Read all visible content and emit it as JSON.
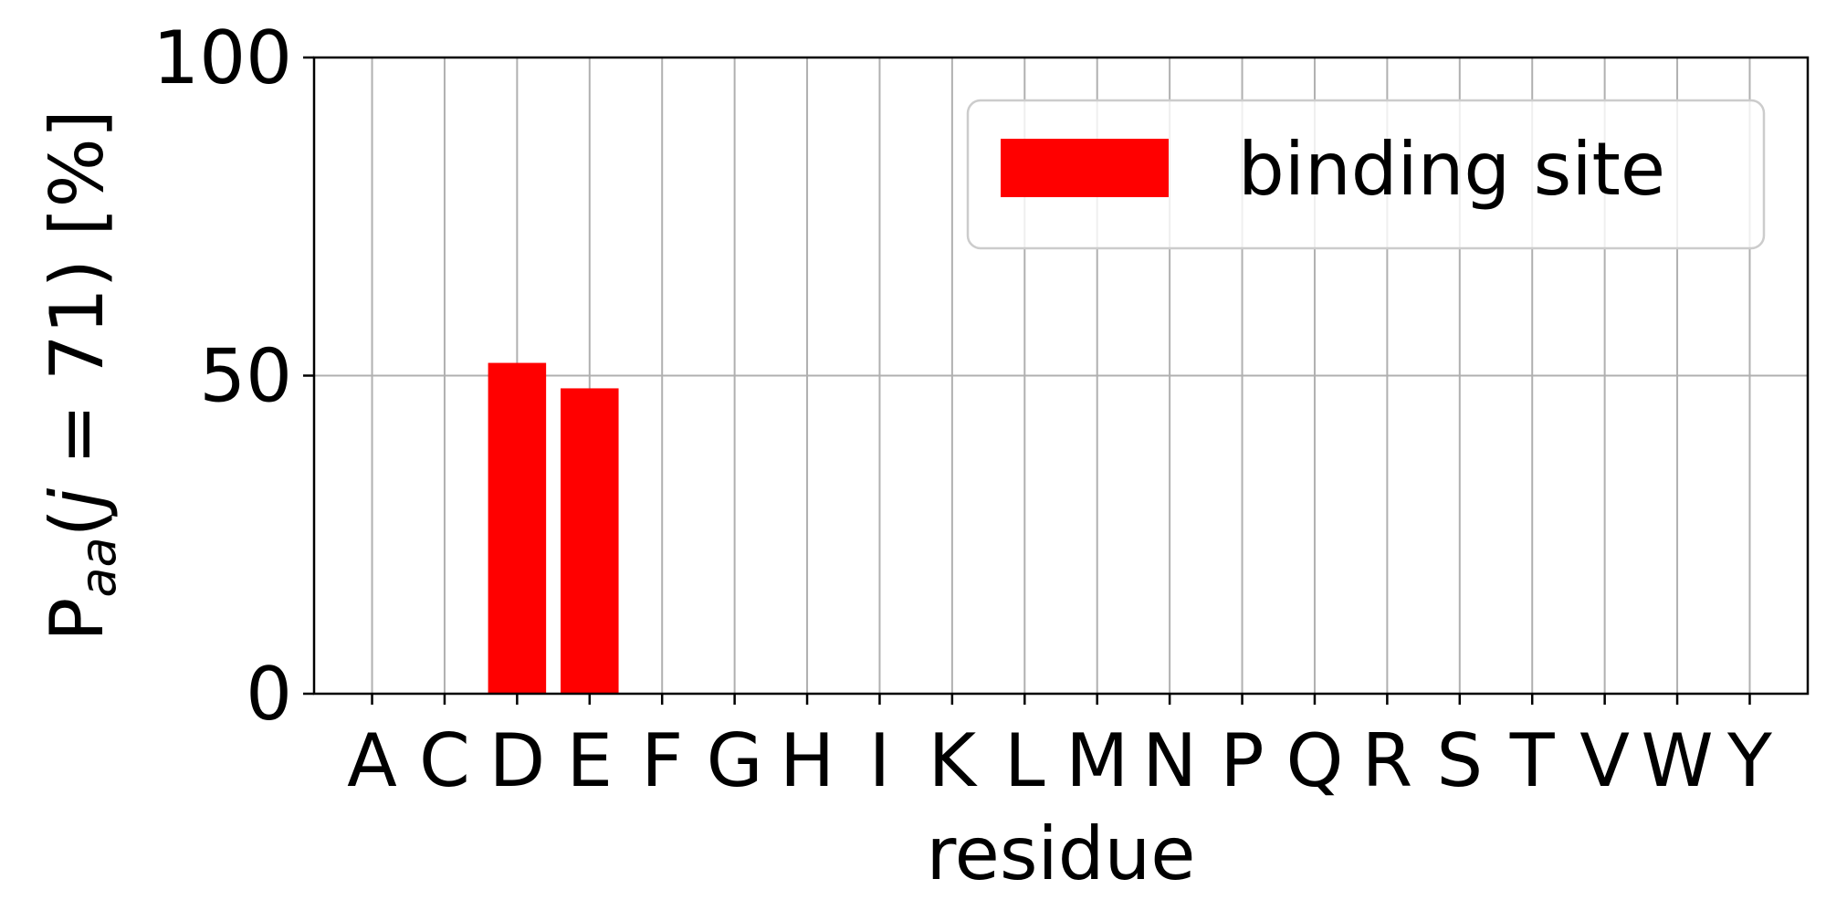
{
  "chart_data": {
    "type": "bar",
    "categories": [
      "A",
      "C",
      "D",
      "E",
      "F",
      "G",
      "H",
      "I",
      "K",
      "L",
      "M",
      "N",
      "P",
      "Q",
      "R",
      "S",
      "T",
      "V",
      "W",
      "Y"
    ],
    "series": [
      {
        "name": "binding site",
        "color": "#ff0000",
        "values": [
          0,
          0,
          52,
          48,
          0,
          0,
          0,
          0,
          0,
          0,
          0,
          0,
          0,
          0,
          0,
          0,
          0,
          0,
          0,
          0
        ]
      }
    ],
    "xlabel": "residue",
    "ylabel": "P_aa(j = 71) [%]",
    "ylabel_parts": {
      "main": "P",
      "sub": "aa",
      "open": "(",
      "var": "j",
      "rest": " = 71) [%]"
    },
    "ylim": [
      0,
      100
    ],
    "yticks": [
      0,
      50,
      100
    ],
    "grid": true,
    "legend_position": "top-right"
  }
}
